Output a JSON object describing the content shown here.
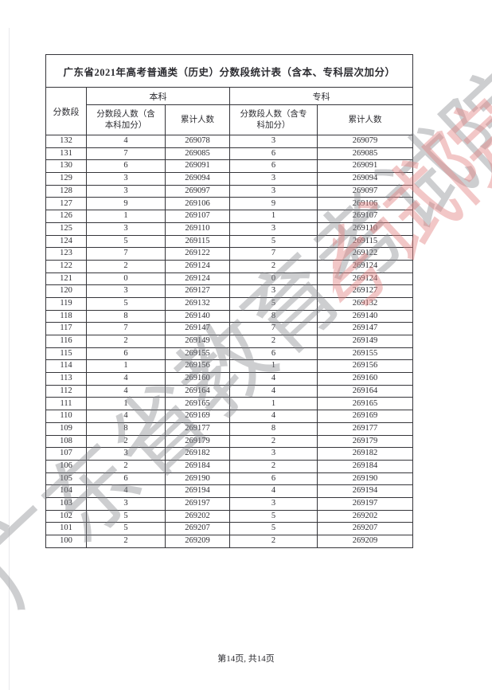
{
  "page": {
    "footer": "第14页, 共14页",
    "watermark": {
      "text": "广东省教育考试院",
      "grey_color": "rgba(130,133,138,0.40)",
      "pink_color": "rgba(226,130,130,0.45)"
    },
    "text_color": "#2c2c31",
    "background_color": "#ffffff"
  },
  "table": {
    "title": "广东省2021年高考普通类（历史）分数段统计表（含本、专科层次加分）",
    "headers": {
      "score": "分数段",
      "benke_group": "本科",
      "zhuanke_group": "专科",
      "benke_count": "分数段人数（含\n本科加分）",
      "benke_cum": "累计人数",
      "zhuanke_count": "分数段人数（含专\n科加分）",
      "zhuanke_cum": "累计人数"
    },
    "rows": [
      [
        132,
        4,
        269078,
        3,
        269079
      ],
      [
        131,
        7,
        269085,
        6,
        269085
      ],
      [
        130,
        6,
        269091,
        6,
        269091
      ],
      [
        129,
        3,
        269094,
        3,
        269094
      ],
      [
        128,
        3,
        269097,
        3,
        269097
      ],
      [
        127,
        9,
        269106,
        9,
        269106
      ],
      [
        126,
        1,
        269107,
        1,
        269107
      ],
      [
        125,
        3,
        269110,
        3,
        269110
      ],
      [
        124,
        5,
        269115,
        5,
        269115
      ],
      [
        123,
        7,
        269122,
        7,
        269122
      ],
      [
        122,
        2,
        269124,
        2,
        269124
      ],
      [
        121,
        0,
        269124,
        0,
        269124
      ],
      [
        120,
        3,
        269127,
        3,
        269127
      ],
      [
        119,
        5,
        269132,
        5,
        269132
      ],
      [
        118,
        8,
        269140,
        8,
        269140
      ],
      [
        117,
        7,
        269147,
        7,
        269147
      ],
      [
        116,
        2,
        269149,
        2,
        269149
      ],
      [
        115,
        6,
        269155,
        6,
        269155
      ],
      [
        114,
        1,
        269156,
        1,
        269156
      ],
      [
        113,
        4,
        269160,
        4,
        269160
      ],
      [
        112,
        4,
        269164,
        4,
        269164
      ],
      [
        111,
        1,
        269165,
        1,
        269165
      ],
      [
        110,
        4,
        269169,
        4,
        269169
      ],
      [
        109,
        8,
        269177,
        8,
        269177
      ],
      [
        108,
        2,
        269179,
        2,
        269179
      ],
      [
        107,
        3,
        269182,
        3,
        269182
      ],
      [
        106,
        2,
        269184,
        2,
        269184
      ],
      [
        105,
        6,
        269190,
        6,
        269190
      ],
      [
        104,
        4,
        269194,
        4,
        269194
      ],
      [
        103,
        3,
        269197,
        3,
        269197
      ],
      [
        102,
        5,
        269202,
        5,
        269202
      ],
      [
        101,
        5,
        269207,
        5,
        269207
      ],
      [
        100,
        2,
        269209,
        2,
        269209
      ]
    ]
  }
}
